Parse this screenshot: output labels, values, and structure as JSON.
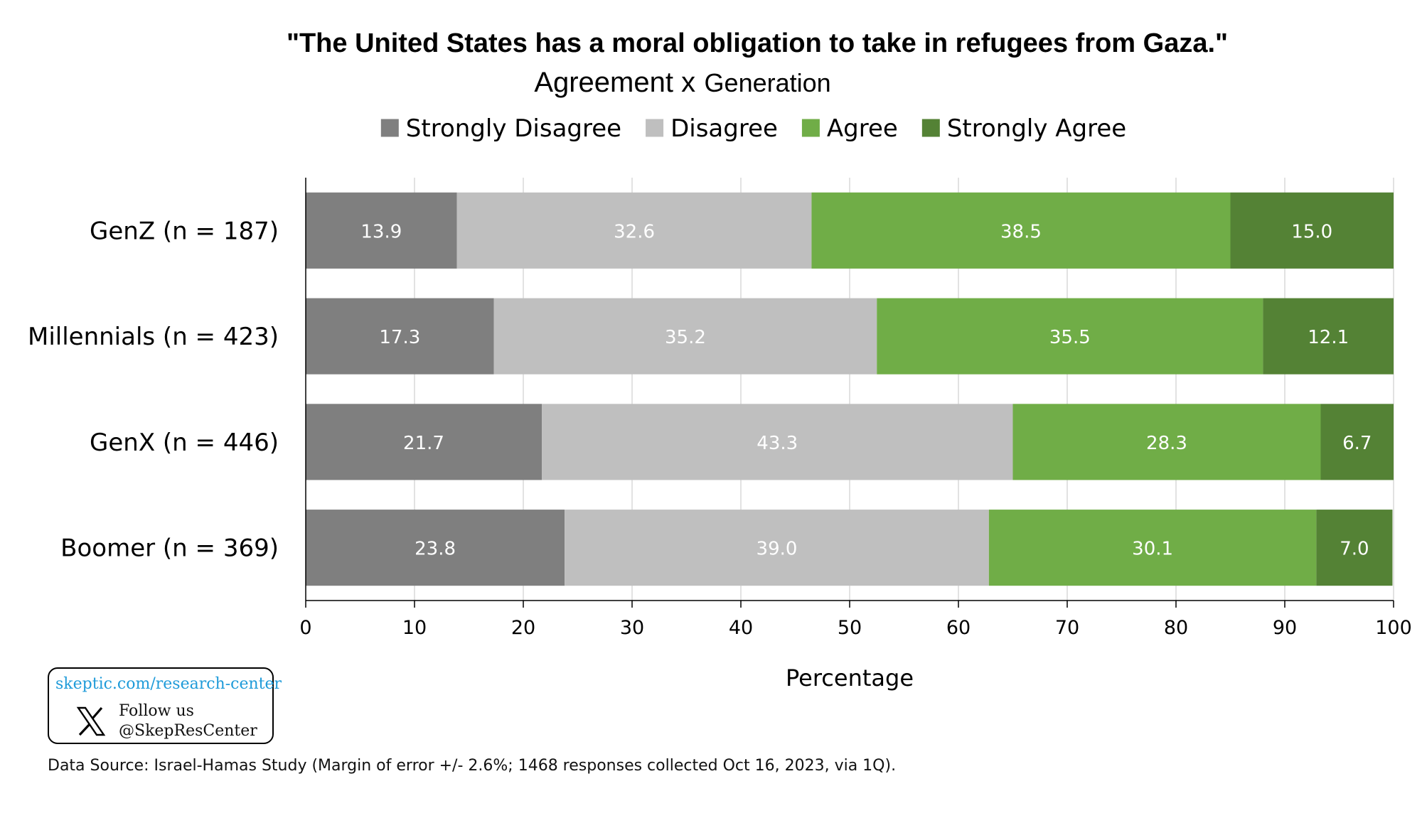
{
  "chart_data": {
    "type": "bar",
    "orientation": "horizontal",
    "stacked": true,
    "title": "\"The United States has a moral obligation to take in refugees from Gaza.\"",
    "subtitle_main": "Agreement x",
    "subtitle_tail": "Generation",
    "categories": [
      "GenZ (n = 187)",
      "Millennials (n = 423)",
      "GenX (n = 446)",
      "Boomer (n = 369)"
    ],
    "series": [
      {
        "name": "Strongly Disagree",
        "color": "#7f7f7f",
        "values": [
          13.9,
          17.3,
          21.7,
          23.8
        ]
      },
      {
        "name": "Disagree",
        "color": "#bfbfbf",
        "values": [
          32.6,
          35.2,
          43.3,
          39.0
        ]
      },
      {
        "name": "Agree",
        "color": "#70ad47",
        "values": [
          38.5,
          35.5,
          28.3,
          30.1
        ]
      },
      {
        "name": "Strongly Agree",
        "color": "#548235",
        "values": [
          15.0,
          12.1,
          6.7,
          7.0
        ]
      }
    ],
    "xlabel": "Percentage",
    "ylabel": "",
    "xlim": [
      0,
      100
    ],
    "xticks": [
      "0",
      "10",
      "20",
      "30",
      "40",
      "50",
      "60",
      "70",
      "80",
      "90",
      "100"
    ],
    "grid": true,
    "legend_position": "top"
  },
  "badge": {
    "url": "skeptic.com/research-center",
    "follow_line1": "Follow us",
    "follow_line2": "@SkepResCenter",
    "icon": "x-logo-icon"
  },
  "footer": {
    "source": "Data Source: Israel-Hamas Study (Margin of error +/- 2.6%; 1468 responses collected Oct 16, 2023, via 1Q)."
  }
}
